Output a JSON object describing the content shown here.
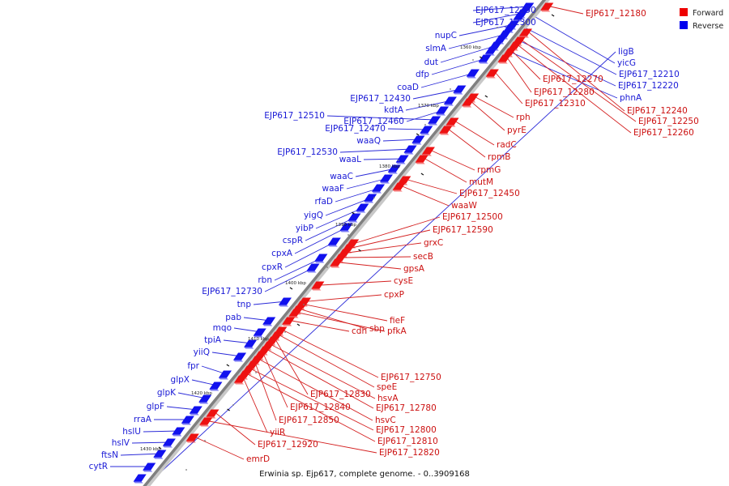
{
  "caption": "Erwinia sp. Ejp617, complete genome. - 0..3909168",
  "legend": [
    {
      "label": "Forward",
      "color": "#ee0000"
    },
    {
      "label": "Reverse",
      "color": "#0000ee"
    }
  ],
  "colors": {
    "forward": "#ee1111",
    "forward_line": "#d42020",
    "reverse": "#1111ee",
    "reverse_line": "#2a2ad8",
    "axis": "#808080"
  },
  "axis_ticks": [
    "1360 kbp",
    "1370 kbp",
    "1380 kbp",
    "1390 kbp",
    "1400 kbp",
    "1410 kbp",
    "1420 kbp",
    "1430 kbp"
  ],
  "reverse_genes": [
    "EJP617_12290",
    "EJP617_12300",
    "nupC",
    "slmA",
    "dut",
    "dfp",
    "coaD",
    "EJP617_12430",
    "kdtA",
    "EJP617_12460",
    "EJP617_12510",
    "EJP617_12470",
    "waaQ",
    "EJP617_12530",
    "waaL",
    "waaC",
    "waaF",
    "rfaD",
    "yigQ",
    "yibP",
    "cspR",
    "cpxA",
    "cpxR",
    "rbn",
    "EJP617_12730",
    "tnp",
    "pab",
    "mqo",
    "tpiA",
    "yiiQ",
    "fpr",
    "glpX",
    "glpK",
    "glpF",
    "rraA",
    "hslU",
    "hslV",
    "ftsN",
    "cytR",
    "ligB",
    "yicG",
    "EJP617_12210",
    "EJP617_12220",
    "phnA"
  ],
  "forward_genes": [
    "EJP617_12180",
    "EJP617_12270",
    "EJP617_12280",
    "EJP617_12310",
    "rph",
    "pyrE",
    "radC",
    "rpmB",
    "rpmG",
    "mutM",
    "EJP617_12450",
    "waaW",
    "EJP617_12500",
    "EJP617_12590",
    "grxC",
    "secB",
    "gpsA",
    "cysE",
    "cpxP",
    "fieF",
    "sbp",
    "pfkA",
    "cdh",
    "EJP617_12750",
    "speE",
    "EJP617_12830",
    "hsvA",
    "EJP617_12780",
    "EJP617_12840",
    "hsvC",
    "EJP617_12850",
    "EJP617_12800",
    "EJP617_12810",
    "yiiR",
    "EJP617_12920",
    "EJP617_12820",
    "emrD",
    "EJP617_12240",
    "EJP617_12250",
    "EJP617_12260"
  ]
}
